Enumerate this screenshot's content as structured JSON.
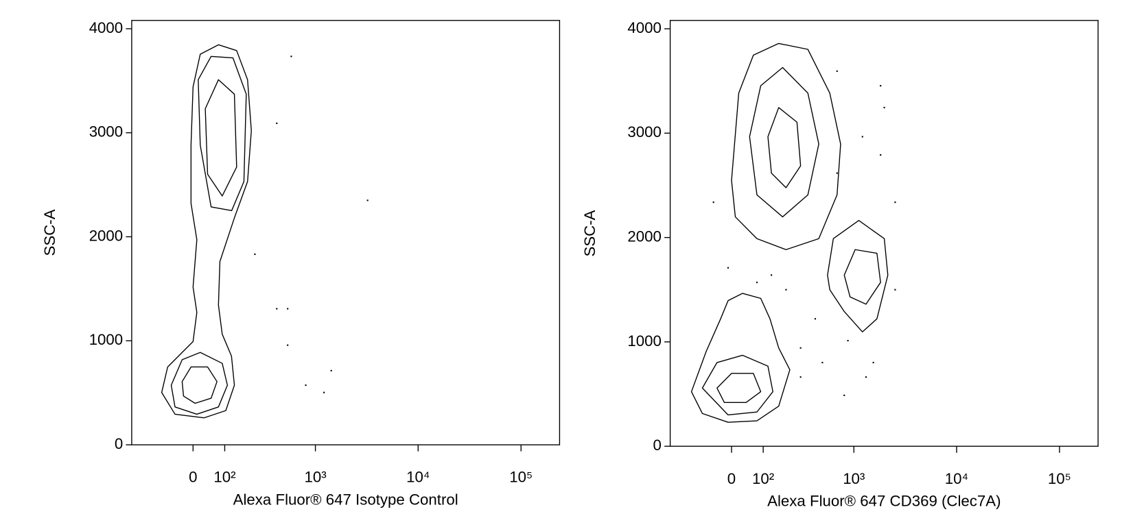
{
  "chart_data": [
    {
      "type": "contour",
      "xlabel": "Alexa Fluor® 647 Isotype Control",
      "ylabel": "SSC-A",
      "xscale": "biexponential",
      "color": "#000000",
      "xlim": [
        -240,
        237000
      ],
      "ylim": [
        0,
        4080
      ],
      "xticks": [
        0,
        {
          "value": 100,
          "label": "10²"
        },
        {
          "value": 1000,
          "label": "10³"
        },
        {
          "value": 10000,
          "label": "10⁴"
        },
        {
          "value": 100000,
          "label": "10⁵"
        }
      ],
      "yticks": [
        0,
        1000,
        2000,
        3000,
        4000
      ],
      "contours": [
        {
          "x": [
            -99,
            -78,
            -32,
            0,
            11,
            0,
            11,
            -6,
            -6,
            0,
            21,
            78,
            148,
            201,
            222,
            201,
            138,
            83,
            78,
            91,
            126,
            138,
            104,
            32,
            -54
          ],
          "y": [
            503,
            748,
            888,
            993,
            1273,
            1517,
            1972,
            2322,
            2881,
            3441,
            3755,
            3846,
            3790,
            3510,
            3021,
            2531,
            2182,
            1762,
            1343,
            1063,
            853,
            573,
            329,
            259,
            294
          ]
        },
        {
          "x": [
            -66,
            -32,
            21,
            91,
            110,
            78,
            11,
            -54
          ],
          "y": [
            573,
            818,
            888,
            783,
            573,
            364,
            294,
            364
          ]
        },
        {
          "x": [
            -32,
            -6,
            43,
            73,
            54,
            6,
            -28
          ],
          "y": [
            608,
            748,
            748,
            608,
            448,
            399,
            469
          ]
        },
        {
          "x": [
            15,
            54,
            132,
            194,
            182,
            127,
            54,
            21
          ],
          "y": [
            3510,
            3734,
            3720,
            3371,
            2531,
            2252,
            2287,
            2881
          ]
        },
        {
          "x": [
            36,
            78,
            138,
            148,
            91,
            43
          ],
          "y": [
            3231,
            3510,
            3371,
            2671,
            2392,
            2601
          ]
        }
      ],
      "points": {
        "x": [
          578,
          413,
          3227,
          804,
          1213,
          532,
          413,
          532,
          1429,
          243
        ],
        "y": [
          3734,
          3091,
          2350,
          573,
          503,
          958,
          1308,
          1308,
          713,
          1832
        ]
      }
    },
    {
      "type": "contour",
      "xlabel": "Alexa Fluor® 647 CD369 (Clec7A)",
      "ylabel": "SSC-A",
      "xscale": "biexponential",
      "color": "#000000",
      "xlim": [
        -240,
        237000
      ],
      "ylim": [
        0,
        4080
      ],
      "xticks": [
        0,
        {
          "value": 100,
          "label": "10²"
        },
        {
          "value": 1000,
          "label": "10³"
        },
        {
          "value": 10000,
          "label": "10⁴"
        },
        {
          "value": 100000,
          "label": "10⁵"
        }
      ],
      "yticks": [
        0,
        1000,
        2000,
        3000,
        4000
      ],
      "contours": [
        {
          "x": [
            0,
            21,
            66,
            164,
            347,
            578,
            741,
            683,
            449,
            201,
            78,
            11
          ],
          "y": [
            2547,
            3384,
            3747,
            3859,
            3803,
            3384,
            2896,
            2408,
            1989,
            1884,
            1989,
            2198
          ]
        },
        {
          "x": [
            54,
            91,
            183,
            347,
            449,
            347,
            183,
            78
          ],
          "y": [
            2966,
            3454,
            3629,
            3384,
            2896,
            2408,
            2198,
            2408
          ]
        },
        {
          "x": [
            118,
            164,
            266,
            291,
            201,
            132
          ],
          "y": [
            2966,
            3245,
            3105,
            2687,
            2477,
            2617
          ]
        },
        {
          "x": [
            549,
            627,
            1118,
            1980,
            2146,
            1680,
            1213,
            804,
            578
          ],
          "y": [
            1640,
            1989,
            2163,
            1989,
            1640,
            1221,
            1096,
            1291,
            1500
          ]
        },
        {
          "x": [
            804,
            1029,
            1680,
            1822,
            1315,
            917
          ],
          "y": [
            1640,
            1884,
            1849,
            1570,
            1361,
            1431
          ]
        },
        {
          "x": [
            -133,
            -78,
            -32,
            -10,
            32,
            91,
            126,
            164,
            222,
            164,
            78,
            -10,
            -91
          ],
          "y": [
            523,
            907,
            1221,
            1396,
            1465,
            1417,
            1221,
            942,
            733,
            384,
            244,
            230,
            314
          ]
        },
        {
          "x": [
            -91,
            -43,
            32,
            118,
            138,
            78,
            -10
          ],
          "y": [
            558,
            802,
            872,
            768,
            523,
            328,
            300
          ]
        },
        {
          "x": [
            -43,
            0,
            66,
            91,
            43,
            -21
          ],
          "y": [
            558,
            698,
            698,
            523,
            419,
            419
          ]
        }
      ],
      "points": {
        "x": [
          683,
          1213,
          1822,
          2527,
          874,
          1549,
          1315,
          804,
          488,
          291,
          413,
          201,
          132,
          2527,
          1980,
          -54,
          -10,
          683,
          1822,
          78,
          291
        ],
        "y": [
          2617,
          2966,
          2791,
          2338,
          1012,
          802,
          663,
          488,
          802,
          942,
          1221,
          1500,
          1640,
          1500,
          3245,
          2338,
          1710,
          3594,
          3454,
          1570,
          663
        ]
      }
    }
  ]
}
